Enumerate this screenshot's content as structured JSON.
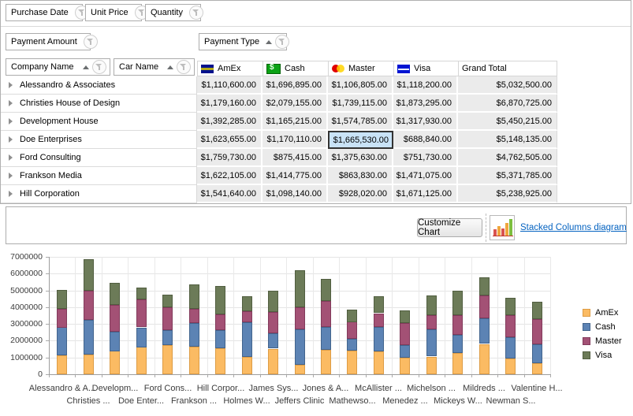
{
  "pivot_grid": {
    "filter_fields": [
      "Purchase Date",
      "Unit Price",
      "Quantity"
    ],
    "data_field": "Payment Amount",
    "column_field": "Payment Type",
    "row_fields": [
      "Company Name",
      "Car Name"
    ],
    "column_headers": [
      {
        "label": "AmEx",
        "icon": "amex-card-icon"
      },
      {
        "label": "Cash",
        "icon": "cash-icon"
      },
      {
        "label": "Master",
        "icon": "mastercard-icon"
      },
      {
        "label": "Visa",
        "icon": "visa-card-icon"
      },
      {
        "label": "Grand Total",
        "icon": ""
      }
    ],
    "rows": [
      {
        "company": "Alessandro & Associates",
        "values": [
          "$1,110,600.00",
          "$1,696,895.00",
          "$1,106,805.00",
          "$1,118,200.00",
          "$5,032,500.00"
        ]
      },
      {
        "company": "Christies House of Design",
        "values": [
          "$1,179,160.00",
          "$2,079,155.00",
          "$1,739,115.00",
          "$1,873,295.00",
          "$6,870,725.00"
        ]
      },
      {
        "company": "Development House",
        "values": [
          "$1,392,285.00",
          "$1,165,215.00",
          "$1,574,785.00",
          "$1,317,930.00",
          "$5,450,215.00"
        ]
      },
      {
        "company": "Doe Enterprises",
        "values": [
          "$1,623,655.00",
          "$1,170,110.00",
          "$1,665,530.00",
          "$688,840.00",
          "$5,148,135.00"
        ]
      },
      {
        "company": "Ford Consulting",
        "values": [
          "$1,759,730.00",
          "$875,415.00",
          "$1,375,630.00",
          "$751,730.00",
          "$4,762,505.00"
        ]
      },
      {
        "company": "Frankson Media",
        "values": [
          "$1,622,105.00",
          "$1,414,775.00",
          "$863,830.00",
          "$1,471,075.00",
          "$5,371,785.00"
        ]
      },
      {
        "company": "Hill Corporation",
        "values": [
          "$1,541,640.00",
          "$1,098,140.00",
          "$928,020.00",
          "$1,671,125.00",
          "$5,238,925.00"
        ]
      }
    ],
    "selected_cell": {
      "row_index": 3,
      "column_index": 2,
      "value": "$1,665,530.00"
    },
    "colors": {
      "cell_bg": "#EBEBEB",
      "selected_bg": "#C9E3F7",
      "selected_border": "#333333"
    }
  },
  "toolbar": {
    "customize_button": "Customize Chart",
    "diagram_link": "Stacked Columns diagram",
    "link_color": "#0563C1"
  },
  "chart_data": {
    "type": "bar",
    "stacked": true,
    "grid": true,
    "legend_position": "right",
    "ylim": [
      0,
      7000000
    ],
    "ytick_step": 1000000,
    "categories": [
      "Alessandro & A...",
      "Christies ...",
      "Developm...",
      "Doe Enter...",
      "Ford Cons...",
      "Frankson ...",
      "Hill Corpor...",
      "Holmes W...",
      "James Sys...",
      "Jeffers Clinic",
      "Jones & A...",
      "Mathewso...",
      "McAllister ...",
      "Menedez ...",
      "Michelson ...",
      "Mickeys W...",
      "Mildreds ...",
      "Newman S...",
      "Valentine H..."
    ],
    "series": [
      {
        "name": "AmEx",
        "color": "#FBBB63",
        "border_color": "#DD9C45",
        "values": [
          1110600,
          1179160,
          1392285,
          1623655,
          1759730,
          1622105,
          1541640,
          1020000,
          1520000,
          550000,
          1460000,
          1410000,
          1360000,
          970000,
          1050000,
          1250000,
          1800000,
          940000,
          670000
        ]
      },
      {
        "name": "Cash",
        "color": "#5C83B4",
        "border_color": "#42648D",
        "values": [
          1696895,
          2079155,
          1165215,
          1170110,
          875415,
          1414775,
          1098140,
          2080000,
          910000,
          2110000,
          1360000,
          700000,
          1470000,
          750000,
          1610000,
          1100000,
          1520000,
          1250000,
          1130000
        ]
      },
      {
        "name": "Master",
        "color": "#A35175",
        "border_color": "#823A5B",
        "values": [
          1106805,
          1739115,
          1574785,
          1665530,
          1375630,
          863830,
          928020,
          660000,
          1280000,
          1330000,
          1570000,
          1020000,
          810000,
          1330000,
          860000,
          1170000,
          1380000,
          1330000,
          1490000
        ]
      },
      {
        "name": "Visa",
        "color": "#6C7B58",
        "border_color": "#515E40",
        "values": [
          1118200,
          1873295,
          1317930,
          688840,
          751730,
          1471075,
          1671125,
          890000,
          1250000,
          2190000,
          1310000,
          740000,
          1000000,
          740000,
          1170000,
          1470000,
          1100000,
          1020000,
          1050000
        ]
      }
    ]
  }
}
